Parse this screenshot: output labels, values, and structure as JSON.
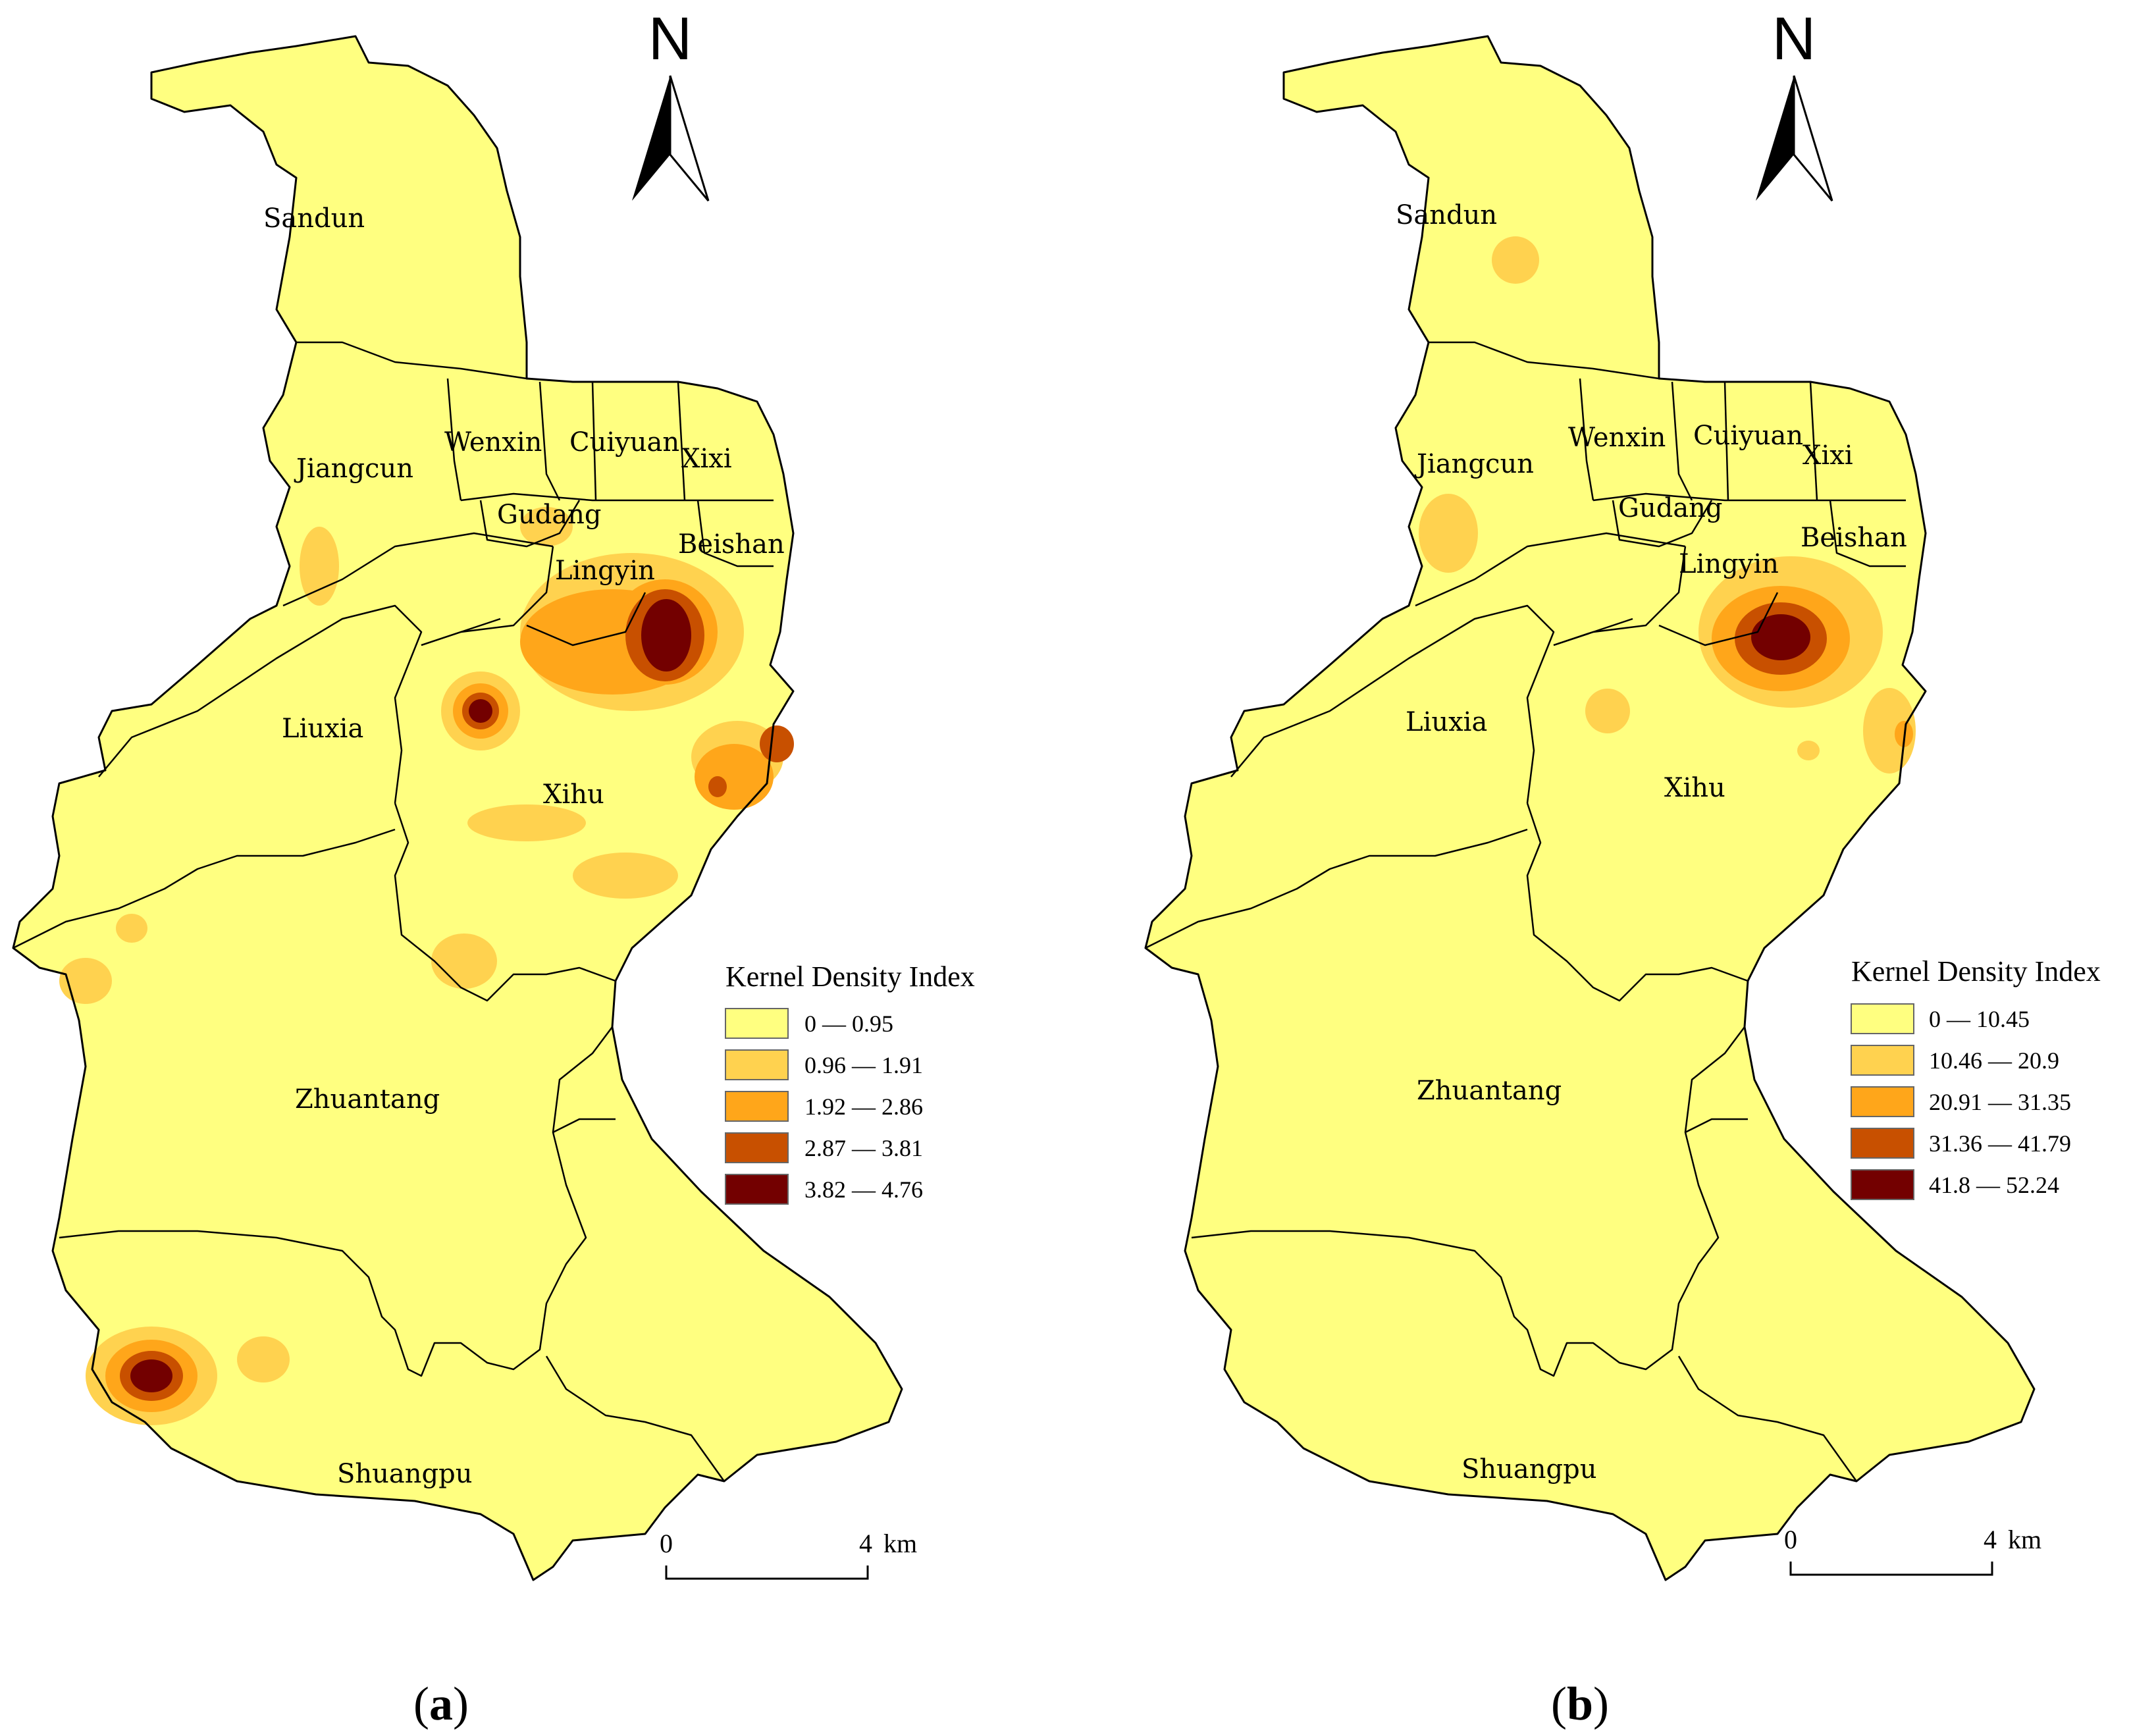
{
  "colors": {
    "base": "#ffff80",
    "class_colors": [
      "#ffff80",
      "#ffd24f",
      "#ffa61a",
      "#c85000",
      "#730000"
    ]
  },
  "panels": [
    {
      "panel_label": "a",
      "north_label": "N",
      "districts": [
        {
          "id": "sandun",
          "name": "Sandun"
        },
        {
          "id": "jiangcun",
          "name": "Jiangcun"
        },
        {
          "id": "wenxin",
          "name": "Wenxin"
        },
        {
          "id": "cuiyuan",
          "name": "Cuiyuan"
        },
        {
          "id": "xixi",
          "name": "Xixi"
        },
        {
          "id": "gudang",
          "name": "Gudang"
        },
        {
          "id": "lingyin",
          "name": "Lingyin"
        },
        {
          "id": "beishan",
          "name": "Beishan"
        },
        {
          "id": "liuxia",
          "name": "Liuxia"
        },
        {
          "id": "xihu",
          "name": "Xihu"
        },
        {
          "id": "zhuantang",
          "name": "Zhuantang"
        },
        {
          "id": "shuangpu",
          "name": "Shuangpu"
        }
      ],
      "legend": {
        "title": "Kernel Density Index",
        "classes": [
          {
            "label": "0 — 0.95"
          },
          {
            "label": "0.96 — 1.91"
          },
          {
            "label": "1.92 — 2.86"
          },
          {
            "label": "2.87 — 3.81"
          },
          {
            "label": "3.82 — 4.76"
          }
        ]
      },
      "scale_bar": {
        "start": "0",
        "end": "4",
        "unit": "km"
      }
    },
    {
      "panel_label": "b",
      "north_label": "N",
      "districts": [
        {
          "id": "sandun",
          "name": "Sandun"
        },
        {
          "id": "jiangcun",
          "name": "Jiangcun"
        },
        {
          "id": "wenxin",
          "name": "Wenxin"
        },
        {
          "id": "cuiyuan",
          "name": "Cuiyuan"
        },
        {
          "id": "xixi",
          "name": "Xixi"
        },
        {
          "id": "gudang",
          "name": "Gudang"
        },
        {
          "id": "lingyin",
          "name": "Lingyin"
        },
        {
          "id": "beishan",
          "name": "Beishan"
        },
        {
          "id": "liuxia",
          "name": "Liuxia"
        },
        {
          "id": "xihu",
          "name": "Xihu"
        },
        {
          "id": "zhuantang",
          "name": "Zhuantang"
        },
        {
          "id": "shuangpu",
          "name": "Shuangpu"
        }
      ],
      "legend": {
        "title": "Kernel Density Index",
        "classes": [
          {
            "label": "0 — 10.45"
          },
          {
            "label": "10.46 — 20.9"
          },
          {
            "label": "20.91 — 31.35"
          },
          {
            "label": "31.36 — 41.79"
          },
          {
            "label": "41.8 — 52.24"
          }
        ]
      },
      "scale_bar": {
        "start": "0",
        "end": "4",
        "unit": "km"
      }
    }
  ]
}
